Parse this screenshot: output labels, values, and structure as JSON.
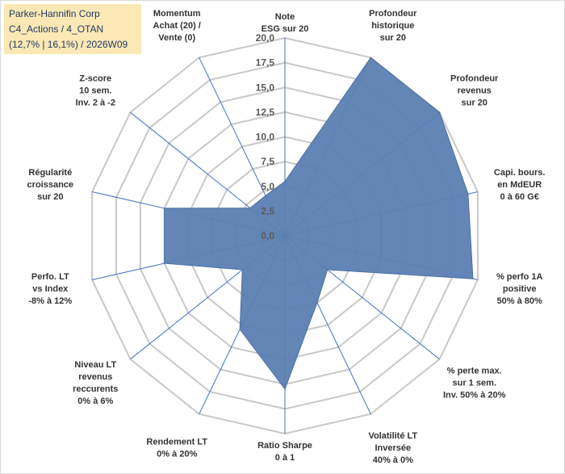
{
  "title": {
    "line1": "Parker-Hannifin Corp",
    "line2": "C4_Actions / 4_OTAN",
    "line3": "(12,7% | 16,1%) / 2026W09"
  },
  "chart_data": {
    "type": "radar",
    "title": "Parker-Hannifin Corp",
    "range": [
      0,
      20
    ],
    "ticks": [
      "0,0",
      "2,5",
      "5,0",
      "7,5",
      "10,0",
      "12,5",
      "15,0",
      "17,5",
      "20,0"
    ],
    "tick_values": [
      0,
      2.5,
      5,
      7.5,
      10,
      12.5,
      15,
      17.5,
      20
    ],
    "grid": true,
    "axes": [
      {
        "label": [
          "Note",
          "ESG sur 20"
        ],
        "value": 5.5
      },
      {
        "label": [
          "Profondeur",
          "historique",
          "sur 20"
        ],
        "value": 20
      },
      {
        "label": [
          "Profondeur",
          "revenus",
          "sur 20"
        ],
        "value": 20
      },
      {
        "label": [
          "Capi. bours.",
          "en MdEUR",
          "0 à 60 G€"
        ],
        "value": 19
      },
      {
        "label": [
          "% perfo 1A",
          "positive",
          "50% à 80%"
        ],
        "value": 19.5
      },
      {
        "label": [
          "% perte max.",
          "sur 1 sem.",
          "Inv. 50% à 20%"
        ],
        "value": 5.5
      },
      {
        "label": [
          "Volatilité LT",
          "Inversée",
          "40% à 0%"
        ],
        "value": 7.5
      },
      {
        "label": [
          "Ratio Sharpe",
          "0 à 1"
        ],
        "value": 15.5
      },
      {
        "label": [
          "Rendement LT",
          "0% à 20%"
        ],
        "value": 10.5
      },
      {
        "label": [
          "Niveau LT",
          "revenus",
          "reccurents",
          "0% à 6%"
        ],
        "value": 5.5
      },
      {
        "label": [
          "Perfo. LT",
          "vs Index",
          "-8% à 12%"
        ],
        "value": 12.5
      },
      {
        "label": [
          "Régularité",
          "croissance",
          "sur 20"
        ],
        "value": 12.5
      },
      {
        "label": [
          "Z-score",
          "10 sem.",
          "Inv. 2 à -2"
        ],
        "value": 4.5
      },
      {
        "label": [
          "Momentum",
          "Achat (20) /",
          "Vente (0)"
        ],
        "value": 4.5
      }
    ],
    "colors": {
      "fill": "#5b80b2",
      "stroke": "#4a6fa1",
      "grid": "#c8c8c8",
      "spoke": "#4472c4"
    }
  }
}
